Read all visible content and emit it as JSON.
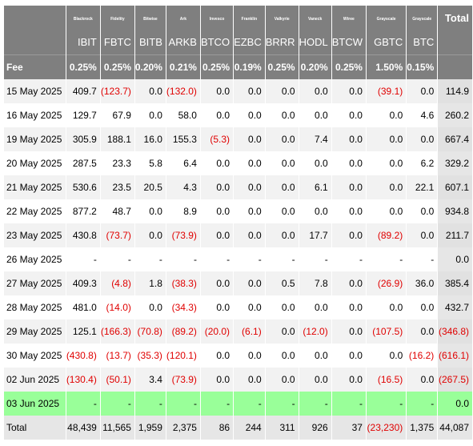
{
  "columns": [
    {
      "issuer": "Blackrock",
      "ticker": "IBIT",
      "fee": "0.25%"
    },
    {
      "issuer": "Fidelity",
      "ticker": "FBTC",
      "fee": "0.25%"
    },
    {
      "issuer": "Bitwise",
      "ticker": "BITB",
      "fee": "0.20%"
    },
    {
      "issuer": "Ark",
      "ticker": "ARKB",
      "fee": "0.21%"
    },
    {
      "issuer": "Invesco",
      "ticker": "BTCO",
      "fee": "0.25%"
    },
    {
      "issuer": "Franklin",
      "ticker": "EZBC",
      "fee": "0.19%"
    },
    {
      "issuer": "Valkyrie",
      "ticker": "BRRR",
      "fee": "0.25%"
    },
    {
      "issuer": "Vaneck",
      "ticker": "HODL",
      "fee": "0.20%"
    },
    {
      "issuer": "Wtree",
      "ticker": "BTCW",
      "fee": "0.25%"
    },
    {
      "issuer": "Grayscale",
      "ticker": "GBTC",
      "fee": "1.50%"
    },
    {
      "issuer": "Grayscale",
      "ticker": "BTC",
      "fee": "0.15%"
    }
  ],
  "total_header": "Total",
  "fee_label": "Fee",
  "rows": [
    {
      "date": "15 May 2025",
      "values": [
        "409.7",
        "(123.7)",
        "0.0",
        "(132.0)",
        "0.0",
        "0.0",
        "0.0",
        "0.0",
        "0.0",
        "(39.1)",
        "0.0"
      ],
      "total": "114.9"
    },
    {
      "date": "16 May 2025",
      "values": [
        "129.7",
        "67.9",
        "0.0",
        "58.0",
        "0.0",
        "0.0",
        "0.0",
        "0.0",
        "0.0",
        "0.0",
        "4.6"
      ],
      "total": "260.2"
    },
    {
      "date": "19 May 2025",
      "values": [
        "305.9",
        "188.1",
        "16.0",
        "155.3",
        "(5.3)",
        "0.0",
        "0.0",
        "7.4",
        "0.0",
        "0.0",
        "0.0"
      ],
      "total": "667.4"
    },
    {
      "date": "20 May 2025",
      "values": [
        "287.5",
        "23.3",
        "5.8",
        "6.4",
        "0.0",
        "0.0",
        "0.0",
        "0.0",
        "0.0",
        "0.0",
        "6.2"
      ],
      "total": "329.2"
    },
    {
      "date": "21 May 2025",
      "values": [
        "530.6",
        "23.5",
        "20.5",
        "4.3",
        "0.0",
        "0.0",
        "0.0",
        "6.1",
        "0.0",
        "0.0",
        "22.1"
      ],
      "total": "607.1"
    },
    {
      "date": "22 May 2025",
      "values": [
        "877.2",
        "48.7",
        "0.0",
        "8.9",
        "0.0",
        "0.0",
        "0.0",
        "0.0",
        "0.0",
        "0.0",
        "0.0"
      ],
      "total": "934.8"
    },
    {
      "date": "23 May 2025",
      "values": [
        "430.8",
        "(73.7)",
        "0.0",
        "(73.9)",
        "0.0",
        "0.0",
        "0.0",
        "17.7",
        "0.0",
        "(89.2)",
        "0.0"
      ],
      "total": "211.7"
    },
    {
      "date": "26 May 2025",
      "values": [
        "-",
        "-",
        "-",
        "-",
        "-",
        "-",
        "-",
        "-",
        "-",
        "-",
        "-"
      ],
      "total": "0.0"
    },
    {
      "date": "27 May 2025",
      "values": [
        "409.3",
        "(4.8)",
        "1.8",
        "(38.3)",
        "0.0",
        "0.0",
        "0.5",
        "7.8",
        "0.0",
        "(26.9)",
        "36.0"
      ],
      "total": "385.4"
    },
    {
      "date": "28 May 2025",
      "values": [
        "481.0",
        "(14.0)",
        "0.0",
        "(34.3)",
        "0.0",
        "0.0",
        "0.0",
        "0.0",
        "0.0",
        "0.0",
        "0.0"
      ],
      "total": "432.7"
    },
    {
      "date": "29 May 2025",
      "values": [
        "125.1",
        "(166.3)",
        "(70.8)",
        "(89.2)",
        "(20.0)",
        "(6.1)",
        "0.0",
        "(12.0)",
        "0.0",
        "(107.5)",
        "0.0"
      ],
      "total": "(346.8)"
    },
    {
      "date": "30 May 2025",
      "values": [
        "(430.8)",
        "(13.7)",
        "(35.3)",
        "(120.1)",
        "0.0",
        "0.0",
        "0.0",
        "0.0",
        "0.0",
        "0.0",
        "(16.2)"
      ],
      "total": "(616.1)"
    },
    {
      "date": "02 Jun 2025",
      "values": [
        "(130.4)",
        "(50.1)",
        "3.4",
        "(73.9)",
        "0.0",
        "0.0",
        "0.0",
        "0.0",
        "0.0",
        "(16.5)",
        "0.0"
      ],
      "total": "(267.5)"
    },
    {
      "date": "03 Jun 2025",
      "values": [
        "-",
        "-",
        "-",
        "-",
        "-",
        "-",
        "-",
        "-",
        "-",
        "-",
        "-"
      ],
      "total": "0.0",
      "highlight": true
    }
  ],
  "totals_row": {
    "label": "Total",
    "values": [
      "48,439",
      "11,565",
      "1,959",
      "2,375",
      "86",
      "244",
      "311",
      "926",
      "37",
      "(23,230)",
      "1,375"
    ],
    "total": "44,087"
  }
}
